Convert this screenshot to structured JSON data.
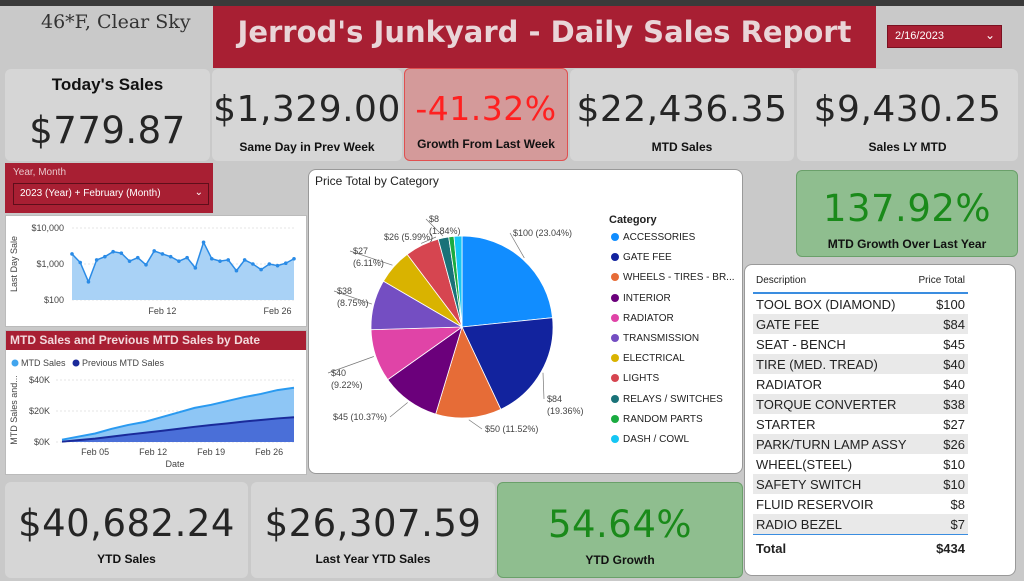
{
  "weather": "46*F, Clear Sky",
  "header": {
    "title": "Jerrod's Junkyard - Daily Sales Report"
  },
  "date_filter": {
    "value": "2/16/2023"
  },
  "kpis": {
    "today_title": "Today's Sales",
    "today_value": "$779.87",
    "prev_week_value": "$1,329.00",
    "prev_week_label": "Same Day  in Prev Week",
    "growth_value": "-41.32%",
    "growth_label": "Growth From Last Week",
    "mtd_value": "$22,436.35",
    "mtd_label": "MTD Sales",
    "ly_mtd_value": "$9,430.25",
    "ly_mtd_label": "Sales LY MTD",
    "mtd_growth_value": "137.92%",
    "mtd_growth_label": "MTD Growth Over Last Year",
    "ytd_value": "$40,682.24",
    "ytd_label": "YTD Sales",
    "ly_ytd_value": "$26,307.59",
    "ly_ytd_label": "Last Year YTD Sales",
    "ytd_growth_value": "54.64%",
    "ytd_growth_label": "YTD Growth"
  },
  "slicer": {
    "label": "Year, Month",
    "value": "2023 (Year) + February (Month)"
  },
  "colors": {
    "brand": "#a81f33",
    "red": "#ff2020",
    "green": "#1a7a1a",
    "lightblue": "#41a5ee",
    "darkblue": "#1a2a9a"
  },
  "chart_data": [
    {
      "type": "area",
      "title": "",
      "xlabel": "",
      "ylabel": "Last Day Sale",
      "yscale": "log",
      "yticks": [
        "$10,000",
        "$1,000",
        "$100"
      ],
      "xticks": [
        "Feb 12",
        "Feb 26"
      ],
      "ylim": [
        100,
        10000
      ],
      "x": [
        "Feb 01",
        "Feb 02",
        "Feb 03",
        "Feb 04",
        "Feb 05",
        "Feb 06",
        "Feb 07",
        "Feb 08",
        "Feb 09",
        "Feb 10",
        "Feb 11",
        "Feb 12",
        "Feb 13",
        "Feb 14",
        "Feb 15",
        "Feb 16",
        "Feb 17",
        "Feb 18",
        "Feb 19",
        "Feb 20",
        "Feb 21",
        "Feb 22",
        "Feb 23",
        "Feb 24",
        "Feb 25",
        "Feb 26",
        "Feb 27",
        "Feb 28"
      ],
      "values": [
        1900,
        1100,
        320,
        1300,
        1600,
        2200,
        2000,
        1200,
        1500,
        950,
        2300,
        1900,
        1600,
        1200,
        1500,
        780,
        4000,
        1400,
        1200,
        1300,
        650,
        1300,
        1000,
        700,
        1000,
        900,
        1050,
        1400
      ]
    },
    {
      "type": "area",
      "title": "MTD Sales and Previous MTD Sales by Date",
      "xlabel": "Date",
      "ylabel": "MTD Sales and...",
      "yticks": [
        "$40K",
        "$20K",
        "$0K"
      ],
      "xticks": [
        "Feb 05",
        "Feb 12",
        "Feb 19",
        "Feb 26"
      ],
      "ylim": [
        0,
        40000
      ],
      "x": [
        "Feb 01",
        "Feb 03",
        "Feb 05",
        "Feb 07",
        "Feb 09",
        "Feb 11",
        "Feb 13",
        "Feb 15",
        "Feb 17",
        "Feb 19",
        "Feb 21",
        "Feb 23",
        "Feb 25",
        "Feb 27",
        "Feb 28"
      ],
      "series": [
        {
          "name": "MTD Sales",
          "values": [
            1500,
            3500,
            5500,
            8500,
            11000,
            13000,
            16000,
            19000,
            22000,
            24000,
            26500,
            29000,
            31000,
            33500,
            35000
          ]
        },
        {
          "name": "Previous MTD Sales",
          "values": [
            200,
            1200,
            2200,
            3500,
            4800,
            6000,
            7200,
            8500,
            9800,
            11000,
            12000,
            13200,
            14200,
            15200,
            16000
          ]
        }
      ]
    },
    {
      "type": "pie",
      "title": "Price Total by Category",
      "legend_title": "Category",
      "categories": [
        "ACCESSORIES",
        "GATE FEE",
        "WHEELS - TIRES - BR...",
        "INTERIOR",
        "RADIATOR",
        "TRANSMISSION",
        "ELECTRICAL",
        "LIGHTS",
        "RELAYS / SWITCHES",
        "RANDOM PARTS",
        "DASH / COWL"
      ],
      "values": [
        100,
        84,
        50,
        45,
        40,
        38,
        27,
        26,
        8,
        4,
        6
      ],
      "labels": [
        "$100 (23.04%)",
        "$84\n(19.36%)",
        "$50 (11.52%)",
        "$45 (10.37%)",
        "$40\n(9.22%)",
        "$38\n(8.75%)",
        "$27\n(6.11%)",
        "$26 (5.99%)",
        "$8\n(1.84%)",
        "",
        ""
      ],
      "colors": [
        "#118dff",
        "#12239e",
        "#e66c37",
        "#6b007b",
        "#e044a7",
        "#744ec2",
        "#d9b300",
        "#d64550",
        "#197278",
        "#1aab40",
        "#15c6f4"
      ]
    }
  ],
  "table": {
    "col_desc": "Description",
    "col_price": "Price Total",
    "rows": [
      [
        "TOOL BOX (DIAMOND)",
        "$100"
      ],
      [
        "GATE FEE",
        "$84"
      ],
      [
        "SEAT - BENCH",
        "$45"
      ],
      [
        "TIRE (MED. TREAD)",
        "$40"
      ],
      [
        "RADIATOR",
        "$40"
      ],
      [
        "TORQUE CONVERTER",
        "$38"
      ],
      [
        "STARTER",
        "$27"
      ],
      [
        "PARK/TURN LAMP ASSY",
        "$26"
      ],
      [
        "WHEEL(STEEL)",
        "$10"
      ],
      [
        "SAFETY SWITCH",
        "$10"
      ],
      [
        "FLUID RESERVOIR",
        "$8"
      ],
      [
        "RADIO BEZEL",
        "$7"
      ]
    ],
    "total_label": "Total",
    "total_value": "$434"
  }
}
